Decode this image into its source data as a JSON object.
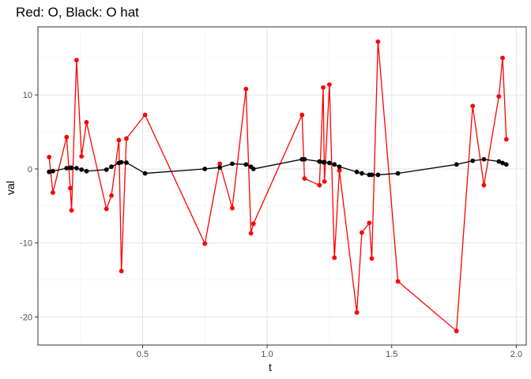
{
  "chart_data": {
    "type": "line",
    "title": "Red: O, Black: O hat",
    "xlabel": "t",
    "ylabel": "val",
    "xlim": [
      0.08,
      2.04
    ],
    "ylim": [
      -23.8,
      19.2
    ],
    "xticks": [
      0.5,
      1.0,
      1.5,
      2.0
    ],
    "xtick_labels": [
      "0.5",
      "1.0",
      "1.5",
      "2.0"
    ],
    "xminor": [
      0.25,
      0.75,
      1.25,
      1.75
    ],
    "yticks": [
      -20,
      -10,
      0,
      10
    ],
    "ytick_labels": [
      "-20",
      "-10",
      "0",
      "10"
    ],
    "yminor": [
      -15,
      -5,
      5,
      15
    ],
    "grid": true,
    "legend": "none",
    "series": [
      {
        "color": "#ff0000",
        "x": [
          0.125,
          0.14,
          0.195,
          0.21,
          0.215,
          0.235,
          0.255,
          0.275,
          0.355,
          0.375,
          0.405,
          0.415,
          0.435,
          0.51,
          0.75,
          0.81,
          0.86,
          0.915,
          0.935,
          0.945,
          1.14,
          1.15,
          1.21,
          1.225,
          1.23,
          1.25,
          1.27,
          1.29,
          1.36,
          1.38,
          1.41,
          1.42,
          1.445,
          1.525,
          1.76,
          1.825,
          1.87,
          1.93,
          1.945,
          1.96
        ],
        "y": [
          1.6,
          -3.2,
          4.3,
          -2.6,
          -5.6,
          14.7,
          1.7,
          6.3,
          -5.4,
          -3.6,
          3.9,
          -13.8,
          4.1,
          7.3,
          -10.1,
          0.7,
          -5.3,
          10.8,
          -8.7,
          -7.4,
          7.3,
          -1.3,
          -2.2,
          11.0,
          -1.7,
          11.4,
          -12.0,
          -0.2,
          -19.4,
          -8.6,
          -7.3,
          -12.1,
          17.2,
          -15.2,
          -21.9,
          8.5,
          -2.2,
          9.8,
          15.0,
          4.0
        ]
      },
      {
        "color": "#000000",
        "x": [
          0.125,
          0.14,
          0.195,
          0.21,
          0.215,
          0.235,
          0.255,
          0.275,
          0.355,
          0.375,
          0.405,
          0.415,
          0.435,
          0.51,
          0.75,
          0.81,
          0.86,
          0.915,
          0.935,
          0.945,
          1.14,
          1.15,
          1.21,
          1.225,
          1.23,
          1.25,
          1.27,
          1.29,
          1.36,
          1.38,
          1.41,
          1.42,
          1.445,
          1.525,
          1.76,
          1.825,
          1.87,
          1.93,
          1.945,
          1.96
        ],
        "y": [
          -0.4,
          -0.3,
          0.1,
          0.15,
          0.15,
          0.1,
          -0.1,
          -0.3,
          -0.1,
          0.3,
          0.8,
          0.9,
          0.85,
          -0.6,
          0.0,
          0.2,
          0.7,
          0.6,
          0.3,
          0.0,
          1.3,
          1.3,
          1.0,
          0.9,
          0.9,
          0.8,
          0.6,
          0.3,
          -0.4,
          -0.6,
          -0.8,
          -0.8,
          -0.8,
          -0.6,
          0.6,
          1.1,
          1.3,
          1.0,
          0.8,
          0.6
        ]
      }
    ]
  }
}
